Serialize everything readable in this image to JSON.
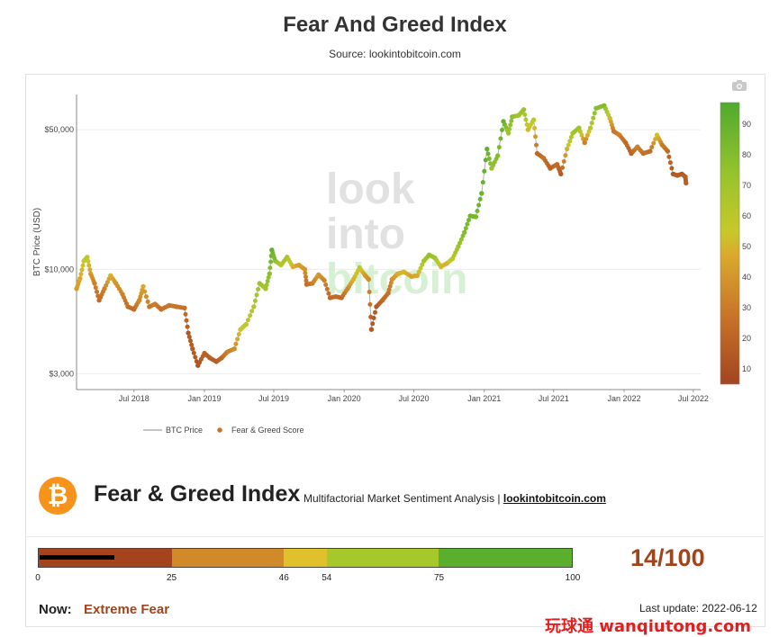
{
  "page": {
    "title": "Fear And Greed Index",
    "source": "Source: lookintobitcoin.com",
    "watermark": "玩球通 wanqiutong.com"
  },
  "chart_data": {
    "type": "scatter",
    "title": "Fear And Greed Index",
    "xlabel": "",
    "ylabel": "BTC Price (USD)",
    "y_scale": "log",
    "ylim": [
      2500,
      75000
    ],
    "xlim": [
      "2018-02-01",
      "2022-07-20"
    ],
    "x_ticks": [
      "Jul 2018",
      "Jan 2019",
      "Jul 2019",
      "Jan 2020",
      "Jul 2020",
      "Jan 2021",
      "Jul 2021",
      "Jan 2022",
      "Jul 2022"
    ],
    "x_tick_dates": [
      "2018-07-01",
      "2019-01-01",
      "2019-07-01",
      "2020-01-01",
      "2020-07-01",
      "2021-01-01",
      "2021-07-01",
      "2022-01-01",
      "2022-07-01"
    ],
    "y_ticks": [
      "$3,000",
      "$10,000",
      "$50,000"
    ],
    "y_tick_values": [
      3000,
      10000,
      50000
    ],
    "grid": true,
    "legend_position": "bottom",
    "legend": [
      "BTC Price",
      "Fear & Greed Score"
    ],
    "colorbar": {
      "ticks": [
        10,
        20,
        30,
        40,
        50,
        60,
        70,
        80,
        90
      ],
      "range": [
        5,
        97
      ]
    },
    "watermark_logo": [
      "look",
      "into",
      "bitcoin"
    ],
    "series": [
      {
        "name": "BTC Price",
        "points": [
          [
            "2018-02-01",
            8000,
            40
          ],
          [
            "2018-02-10",
            9000,
            45
          ],
          [
            "2018-02-20",
            11000,
            55
          ],
          [
            "2018-03-01",
            11500,
            58
          ],
          [
            "2018-03-10",
            9500,
            40
          ],
          [
            "2018-03-20",
            8500,
            30
          ],
          [
            "2018-04-01",
            7000,
            20
          ],
          [
            "2018-04-15",
            8000,
            30
          ],
          [
            "2018-05-01",
            9300,
            48
          ],
          [
            "2018-05-15",
            8500,
            38
          ],
          [
            "2018-06-01",
            7500,
            30
          ],
          [
            "2018-06-15",
            6500,
            22
          ],
          [
            "2018-07-01",
            6300,
            20
          ],
          [
            "2018-07-15",
            7000,
            32
          ],
          [
            "2018-07-25",
            8200,
            45
          ],
          [
            "2018-08-10",
            6500,
            25
          ],
          [
            "2018-08-25",
            6700,
            28
          ],
          [
            "2018-09-10",
            6300,
            22
          ],
          [
            "2018-10-01",
            6600,
            25
          ],
          [
            "2018-10-20",
            6500,
            25
          ],
          [
            "2018-11-10",
            6400,
            22
          ],
          [
            "2018-11-20",
            4800,
            10
          ],
          [
            "2018-12-01",
            4000,
            12
          ],
          [
            "2018-12-15",
            3300,
            8
          ],
          [
            "2019-01-01",
            3800,
            15
          ],
          [
            "2019-01-15",
            3600,
            14
          ],
          [
            "2019-02-01",
            3450,
            12
          ],
          [
            "2019-02-15",
            3600,
            18
          ],
          [
            "2019-03-01",
            3850,
            28
          ],
          [
            "2019-03-20",
            4000,
            33
          ],
          [
            "2019-04-05",
            5000,
            55
          ],
          [
            "2019-04-20",
            5300,
            58
          ],
          [
            "2019-05-10",
            6500,
            63
          ],
          [
            "2019-05-25",
            8500,
            72
          ],
          [
            "2019-06-10",
            8000,
            70
          ],
          [
            "2019-06-20",
            9500,
            78
          ],
          [
            "2019-06-26",
            12500,
            92
          ],
          [
            "2019-07-05",
            11000,
            80
          ],
          [
            "2019-07-20",
            10500,
            62
          ],
          [
            "2019-08-05",
            11500,
            68
          ],
          [
            "2019-08-20",
            10300,
            48
          ],
          [
            "2019-09-05",
            10500,
            42
          ],
          [
            "2019-09-20",
            10000,
            38
          ],
          [
            "2019-09-25",
            8400,
            20
          ],
          [
            "2019-10-10",
            8500,
            28
          ],
          [
            "2019-10-26",
            9400,
            40
          ],
          [
            "2019-11-10",
            8800,
            30
          ],
          [
            "2019-11-25",
            7200,
            18
          ],
          [
            "2019-12-10",
            7300,
            20
          ],
          [
            "2019-12-25",
            7200,
            18
          ],
          [
            "2020-01-10",
            8000,
            32
          ],
          [
            "2020-01-25",
            8900,
            48
          ],
          [
            "2020-02-10",
            10200,
            58
          ],
          [
            "2020-02-25",
            9300,
            40
          ],
          [
            "2020-03-05",
            8900,
            35
          ],
          [
            "2020-03-12",
            5000,
            10
          ],
          [
            "2020-03-25",
            6500,
            12
          ],
          [
            "2020-04-10",
            7000,
            18
          ],
          [
            "2020-04-25",
            7600,
            22
          ],
          [
            "2020-05-05",
            8900,
            35
          ],
          [
            "2020-05-20",
            9500,
            45
          ],
          [
            "2020-06-05",
            9700,
            50
          ],
          [
            "2020-06-25",
            9200,
            42
          ],
          [
            "2020-07-10",
            9300,
            45
          ],
          [
            "2020-07-27",
            11000,
            68
          ],
          [
            "2020-08-10",
            11800,
            76
          ],
          [
            "2020-08-25",
            11400,
            72
          ],
          [
            "2020-09-10",
            10300,
            50
          ],
          [
            "2020-09-25",
            10700,
            48
          ],
          [
            "2020-10-10",
            11300,
            60
          ],
          [
            "2020-10-25",
            13000,
            72
          ],
          [
            "2020-11-10",
            15300,
            82
          ],
          [
            "2020-11-25",
            18500,
            88
          ],
          [
            "2020-12-10",
            18300,
            86
          ],
          [
            "2020-12-25",
            24000,
            92
          ],
          [
            "2021-01-08",
            40000,
            94
          ],
          [
            "2021-01-20",
            32000,
            75
          ],
          [
            "2021-02-05",
            37000,
            82
          ],
          [
            "2021-02-20",
            55000,
            93
          ],
          [
            "2021-03-05",
            48000,
            72
          ],
          [
            "2021-03-15",
            58000,
            80
          ],
          [
            "2021-04-01",
            59000,
            70
          ],
          [
            "2021-04-14",
            63000,
            74
          ],
          [
            "2021-04-25",
            50000,
            50
          ],
          [
            "2021-05-10",
            56000,
            60
          ],
          [
            "2021-05-19",
            38000,
            18
          ],
          [
            "2021-06-05",
            36000,
            22
          ],
          [
            "2021-06-22",
            32000,
            15
          ],
          [
            "2021-07-10",
            33500,
            20
          ],
          [
            "2021-07-20",
            30000,
            12
          ],
          [
            "2021-08-05",
            40000,
            48
          ],
          [
            "2021-08-20",
            48000,
            70
          ],
          [
            "2021-09-05",
            51000,
            72
          ],
          [
            "2021-09-20",
            43000,
            28
          ],
          [
            "2021-10-05",
            51000,
            62
          ],
          [
            "2021-10-20",
            64000,
            80
          ],
          [
            "2021-11-10",
            66000,
            82
          ],
          [
            "2021-11-25",
            57000,
            50
          ],
          [
            "2021-12-05",
            49000,
            25
          ],
          [
            "2021-12-20",
            47000,
            28
          ],
          [
            "2022-01-05",
            43000,
            20
          ],
          [
            "2022-01-20",
            38000,
            15
          ],
          [
            "2022-02-05",
            41000,
            30
          ],
          [
            "2022-02-20",
            38000,
            22
          ],
          [
            "2022-03-10",
            39000,
            20
          ],
          [
            "2022-03-28",
            47000,
            55
          ],
          [
            "2022-04-10",
            42000,
            28
          ],
          [
            "2022-04-25",
            39000,
            20
          ],
          [
            "2022-05-09",
            30000,
            10
          ],
          [
            "2022-05-20",
            29500,
            12
          ],
          [
            "2022-06-01",
            30000,
            12
          ],
          [
            "2022-06-10",
            29000,
            14
          ],
          [
            "2022-06-12",
            27000,
            14
          ]
        ]
      }
    ]
  },
  "bottom": {
    "logo_glyph": "₿",
    "heading": "Fear & Greed Index",
    "subtitle_prefix": "Multifactorial Market Sentiment Analysis | ",
    "subtitle_link": "lookintobitcoin.com",
    "gauge": {
      "value": 14,
      "max": 100,
      "segments": [
        {
          "from": 0,
          "to": 25,
          "color": "#a3441f"
        },
        {
          "from": 25,
          "to": 46,
          "color": "#d18a2a"
        },
        {
          "from": 46,
          "to": 54,
          "color": "#e0c02b"
        },
        {
          "from": 54,
          "to": 75,
          "color": "#a6c82a"
        },
        {
          "from": 75,
          "to": 100,
          "color": "#5aaf2c"
        }
      ],
      "tick_labels": [
        "0",
        "25",
        "46",
        "54",
        "75",
        "100"
      ]
    },
    "score_text": "14/100",
    "now_label": "Now:",
    "now_value": "Extreme Fear",
    "last_update": "Last update: 2022-06-12"
  },
  "colors": {
    "accent": "#a0441b",
    "bitcoin": "#f7931a"
  }
}
